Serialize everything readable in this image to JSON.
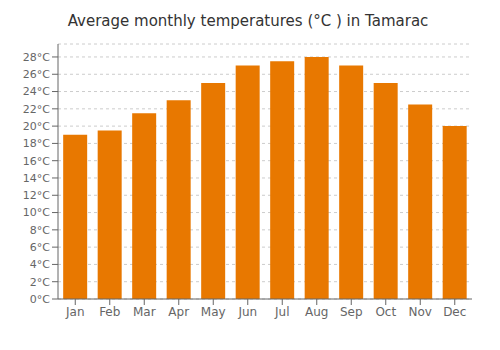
{
  "chart_data": {
    "type": "bar",
    "title": "Average monthly temperatures (°C ) in Tamarac",
    "categories": [
      "Jan",
      "Feb",
      "Mar",
      "Apr",
      "May",
      "Jun",
      "Jul",
      "Aug",
      "Sep",
      "Oct",
      "Nov",
      "Dec"
    ],
    "values": [
      19.0,
      19.5,
      21.5,
      23.0,
      25.0,
      27.0,
      27.5,
      28.0,
      27.0,
      25.0,
      22.5,
      20.0
    ],
    "color": "#E87800",
    "ylim": [
      0,
      29.5
    ],
    "yticks": [
      {
        "value": 0,
        "label": "0°C"
      },
      {
        "value": 2,
        "label": "2°C"
      },
      {
        "value": 4,
        "label": "4°C"
      },
      {
        "value": 6,
        "label": "6°C"
      },
      {
        "value": 8,
        "label": "8°C"
      },
      {
        "value": 10,
        "label": "10°C"
      },
      {
        "value": 12,
        "label": "12°C"
      },
      {
        "value": 14,
        "label": "14°C"
      },
      {
        "value": 16,
        "label": "16°C"
      },
      {
        "value": 18,
        "label": "18°C"
      },
      {
        "value": 20,
        "label": "20°C"
      },
      {
        "value": 22,
        "label": "22°C"
      },
      {
        "value": 24,
        "label": "24°C"
      },
      {
        "value": 26,
        "label": "26°C"
      },
      {
        "value": 28,
        "label": "28°C"
      }
    ],
    "grid": true
  }
}
